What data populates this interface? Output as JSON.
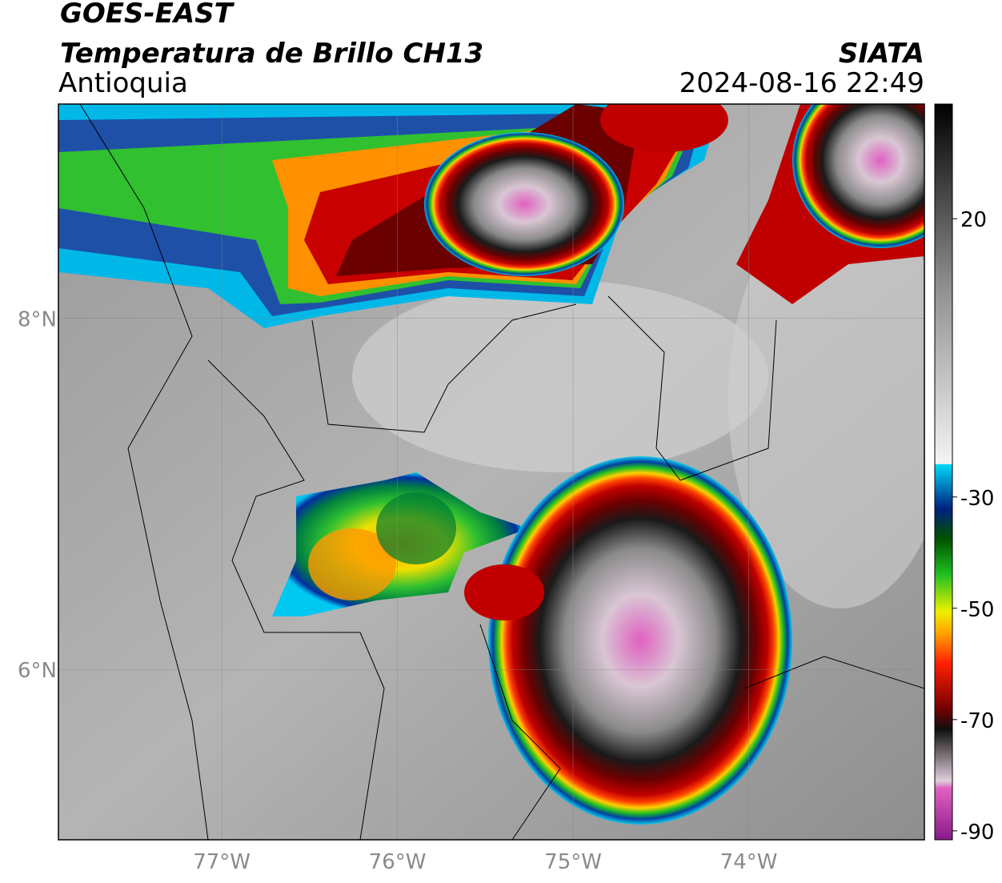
{
  "header": {
    "title": "GOES-EAST",
    "subtitle": "Temperatura de Brillo CH13",
    "region": "Antioquia",
    "source": "SIATA",
    "datetime": "2024-08-16 22:49"
  },
  "map": {
    "xlim": [
      -77.93,
      -73.0
    ],
    "ylim": [
      5.03,
      9.22
    ],
    "xticks": [
      {
        "value": -77,
        "label": "77°W"
      },
      {
        "value": -76,
        "label": "76°W"
      },
      {
        "value": -75,
        "label": "75°W"
      },
      {
        "value": -74,
        "label": "74°W"
      }
    ],
    "yticks": [
      {
        "value": 8,
        "label": "8°N"
      },
      {
        "value": 6,
        "label": "6°N"
      }
    ],
    "grid": true
  },
  "colorbar": {
    "lim": [
      -91.6,
      40.6
    ],
    "ticks": [
      20,
      -30,
      -50,
      -70,
      -90
    ]
  }
}
